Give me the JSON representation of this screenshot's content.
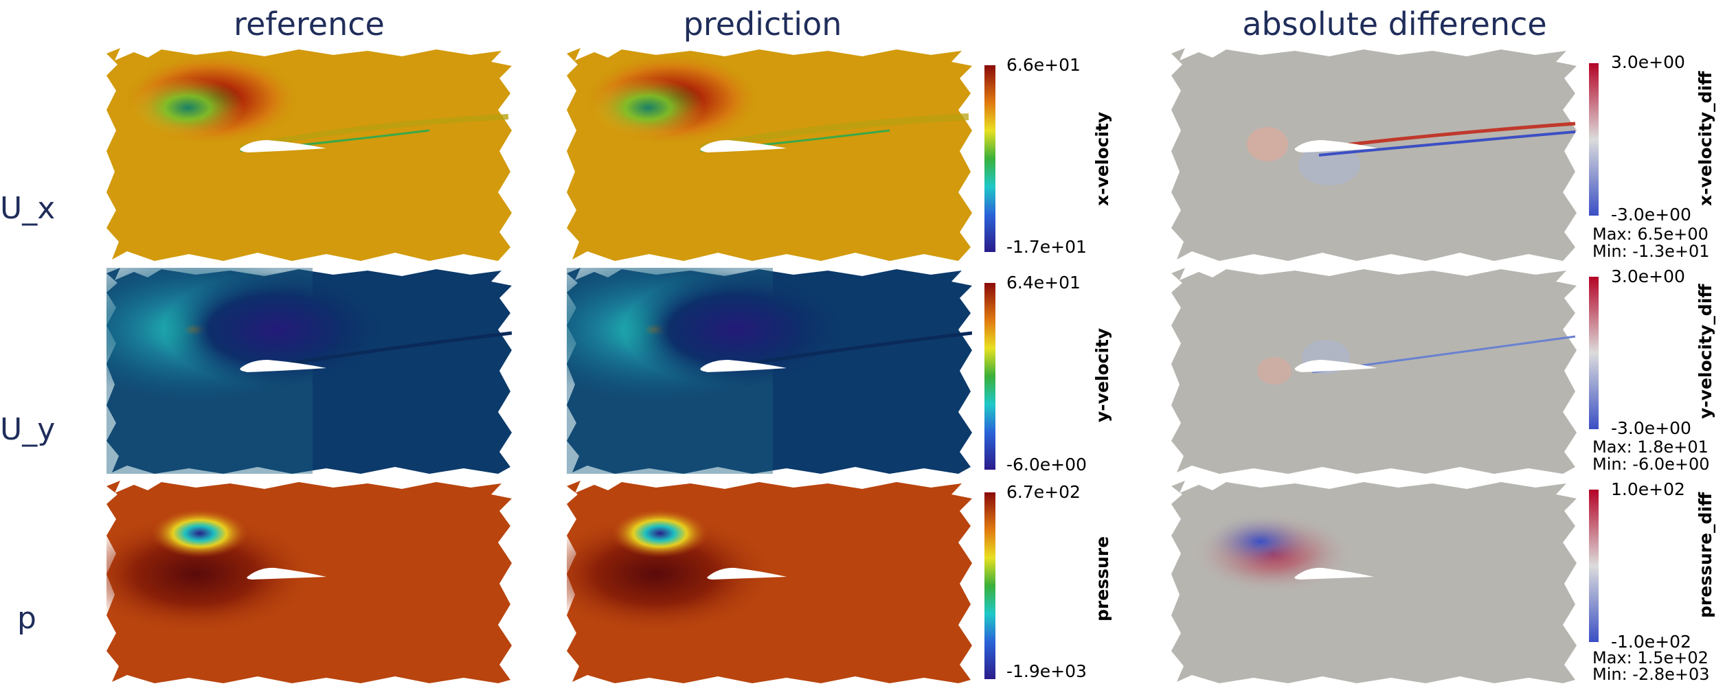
{
  "columns": [
    "reference",
    "prediction",
    "absolute difference"
  ],
  "rows": [
    "U_x",
    "U_y",
    "p"
  ],
  "colorbars": [
    {
      "title": "x-velocity",
      "max": "6.6e+01",
      "min": "-1.7e+01"
    },
    {
      "title": "y-velocity",
      "max": "6.4e+01",
      "min": "-6.0e+00"
    },
    {
      "title": "pressure",
      "max": "6.7e+02",
      "min": "-1.9e+03"
    }
  ],
  "diff_colorbars": [
    {
      "title": "x-velocity_diff",
      "max": "3.0e+00",
      "min": "-3.0e+00",
      "stat_max": "Max: 6.5e+00",
      "stat_min": "Min: -1.3e+01"
    },
    {
      "title": "y-velocity_diff",
      "max": "3.0e+00",
      "min": "-3.0e+00",
      "stat_max": "Max: 1.8e+01",
      "stat_min": "Min: -6.0e+00"
    },
    {
      "title": "pressure_diff",
      "max": "1.0e+02",
      "min": "-1.0e+02",
      "stat_max": "Max: 1.5e+02",
      "stat_min": "Min: -2.8e+03"
    }
  ],
  "colors": {
    "ux_field": "#d29a0c",
    "uy_field": "#0e4a73",
    "p_field": "#b9440e",
    "diff_field": "#b7b5b0",
    "title_text": "#1f2d5a"
  }
}
